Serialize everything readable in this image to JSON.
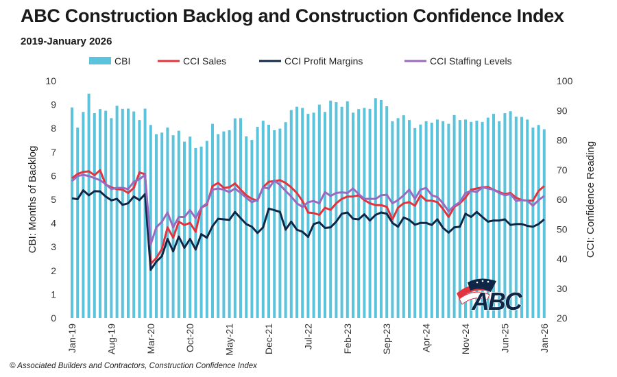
{
  "title": "ABC Construction Backlog and Construction Confidence Index",
  "subtitle": "2019-January 2026",
  "footer": "© Associated Builders and Contractors, Construction Confidence Index",
  "logo": {
    "text": "ABC"
  },
  "chart_data": {
    "type": "bar+line",
    "title": "ABC Construction Backlog and Construction Confidence Index",
    "legend_position": "top",
    "x_tick_labels": [
      "Jan-19",
      "Aug-19",
      "Mar-20",
      "Oct-20",
      "May-21",
      "Dec-21",
      "Jul-22",
      "Feb-23",
      "Sep-23",
      "Apr-24",
      "Nov-24",
      "Jun-25",
      "Jan-26"
    ],
    "x_range": [
      "Jan-19",
      "Jan-26"
    ],
    "x_frequency": "monthly",
    "y_left": {
      "label": "CBI: Months of Backlog",
      "range": [
        0,
        10
      ],
      "ticks": [
        0,
        1,
        2,
        3,
        4,
        5,
        6,
        7,
        8,
        9,
        10
      ]
    },
    "y_right": {
      "label": "CCI: Confidence Reading",
      "range": [
        20,
        100
      ],
      "ticks": [
        20,
        30,
        40,
        50,
        60,
        70,
        80,
        90,
        100
      ]
    },
    "grid": false,
    "colors": {
      "CBI": "#5bc3dc",
      "CCI Sales": "#e2343f",
      "CCI Profit Margins": "#0f2647",
      "CCI Staffing Levels": "#9a6ac0"
    },
    "series": [
      {
        "name": "CBI",
        "type": "bar",
        "axis": "left",
        "values": [
          8.88,
          8.03,
          8.69,
          9.46,
          8.64,
          8.81,
          8.74,
          8.43,
          8.95,
          8.82,
          8.83,
          8.71,
          8.35,
          8.83,
          8.14,
          7.75,
          7.82,
          8.03,
          7.71,
          7.9,
          7.44,
          7.65,
          7.17,
          7.23,
          7.47,
          8.19,
          7.75,
          7.87,
          7.92,
          8.42,
          8.43,
          7.66,
          7.51,
          8.06,
          8.32,
          8.15,
          7.92,
          7.99,
          8.26,
          8.77,
          8.91,
          8.86,
          8.61,
          8.66,
          9.0,
          8.69,
          9.17,
          9.1,
          8.91,
          9.14,
          8.66,
          8.81,
          8.86,
          8.82,
          9.27,
          9.19,
          8.93,
          8.3,
          8.43,
          8.55,
          8.35,
          8.01,
          8.16,
          8.3,
          8.24,
          8.37,
          8.3,
          8.19,
          8.56,
          8.35,
          8.37,
          8.27,
          8.32,
          8.27,
          8.45,
          8.61,
          8.3,
          8.64,
          8.72,
          8.49,
          8.48,
          8.37,
          8.03,
          8.14,
          7.96
        ]
      },
      {
        "name": "CCI Sales",
        "type": "line",
        "axis": "right",
        "values": [
          67.2,
          68.6,
          69.3,
          69.5,
          68.2,
          69.9,
          65.0,
          64.1,
          63.5,
          63.3,
          62.2,
          63.9,
          69.1,
          68.5,
          38.3,
          40.2,
          43.3,
          50.6,
          47.1,
          52.5,
          51.4,
          52.1,
          49.1,
          57.2,
          58.3,
          64.5,
          65.6,
          63.9,
          64.1,
          65.4,
          63.3,
          61.4,
          60.2,
          59.6,
          64.1,
          66.0,
          66.2,
          66.5,
          65.6,
          64.1,
          62.2,
          59.5,
          55.6,
          55.4,
          54.8,
          57.2,
          56.5,
          58.7,
          60.2,
          61.0,
          61.0,
          61.4,
          59.8,
          58.7,
          58.1,
          58.1,
          57.5,
          53.3,
          57.2,
          58.7,
          59.1,
          57.9,
          61.4,
          59.6,
          59.6,
          59.1,
          56.8,
          54.1,
          57.5,
          58.7,
          60.6,
          63.3,
          63.7,
          64.1,
          64.2,
          63.3,
          62.5,
          61.8,
          62.2,
          60.6,
          59.8,
          59.6,
          59.6,
          62.9,
          64.5
        ]
      },
      {
        "name": "CCI Profit Margins",
        "type": "line",
        "axis": "right",
        "values": [
          60.4,
          60.1,
          63.1,
          61.4,
          62.8,
          62.7,
          61.0,
          59.7,
          60.2,
          58.2,
          58.7,
          61.0,
          59.8,
          61.8,
          36.3,
          39.0,
          40.9,
          46.7,
          42.5,
          47.5,
          43.7,
          46.7,
          43.1,
          48.3,
          47.1,
          51.0,
          53.5,
          53.3,
          53.1,
          55.8,
          53.7,
          51.7,
          50.8,
          48.7,
          50.6,
          56.9,
          56.4,
          55.8,
          49.8,
          52.5,
          49.8,
          49.1,
          47.4,
          51.7,
          52.3,
          50.4,
          50.6,
          52.5,
          55.2,
          55.6,
          53.5,
          53.3,
          55.0,
          52.9,
          54.8,
          55.6,
          55.2,
          52.1,
          50.8,
          53.9,
          53.1,
          51.5,
          52.1,
          52.1,
          51.4,
          53.3,
          50.4,
          48.8,
          50.6,
          50.8,
          55.2,
          54.1,
          55.8,
          54.1,
          52.5,
          52.9,
          52.9,
          53.3,
          51.4,
          51.7,
          51.7,
          51.1,
          50.8,
          51.7,
          53.3
        ]
      },
      {
        "name": "CCI Staffing Levels",
        "type": "line",
        "axis": "right",
        "values": [
          66.2,
          67.9,
          68.3,
          67.9,
          67.2,
          66.5,
          65.2,
          63.5,
          63.9,
          63.9,
          63.5,
          66.0,
          66.8,
          68.3,
          44.8,
          50.6,
          52.5,
          55.6,
          50.6,
          54.1,
          54.1,
          56.4,
          53.7,
          57.2,
          58.7,
          63.3,
          63.7,
          63.3,
          62.5,
          63.7,
          62.2,
          60.6,
          59.1,
          59.8,
          64.1,
          63.7,
          66.4,
          64.9,
          62.9,
          61.0,
          58.7,
          57.5,
          59.1,
          59.5,
          58.7,
          62.5,
          61.2,
          62.2,
          62.4,
          62.2,
          63.7,
          61.8,
          60.2,
          60.2,
          60.2,
          61.4,
          61.6,
          58.7,
          59.8,
          61.4,
          63.3,
          60.2,
          63.3,
          63.9,
          61.4,
          60.8,
          58.7,
          56.0,
          57.9,
          59.1,
          62.2,
          62.9,
          62.5,
          64.1,
          63.7,
          63.3,
          62.2,
          61.4,
          61.8,
          59.5,
          59.8,
          59.6,
          57.9,
          59.8,
          61.2
        ]
      }
    ]
  }
}
